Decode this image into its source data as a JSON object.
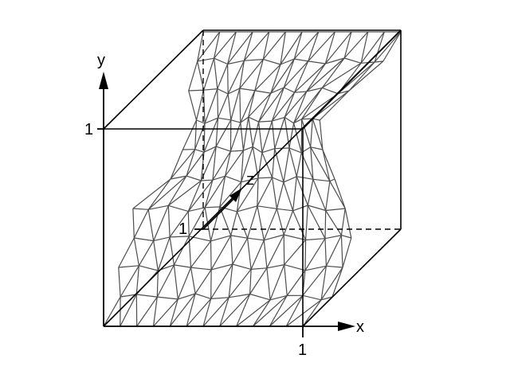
{
  "labels": {
    "x_axis": "x",
    "y_axis": "y",
    "z_axis": "z",
    "x_tick": "1",
    "y_tick": "1",
    "z_tick": "1"
  },
  "colors": {
    "box": "#000000",
    "mesh": "#4d4d4d",
    "background": "#ffffff"
  }
}
